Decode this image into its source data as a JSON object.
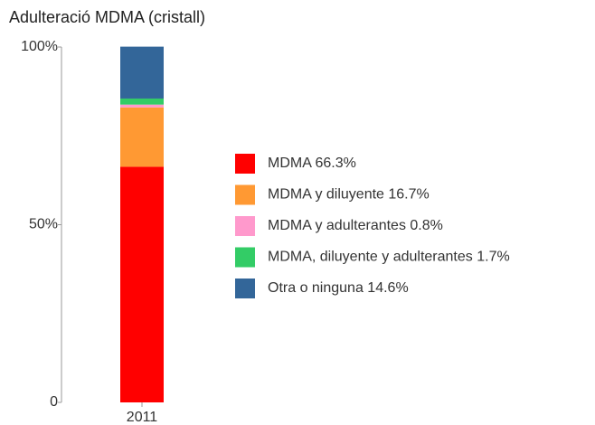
{
  "chart_data": {
    "type": "stacked_bar",
    "title": "Adulteració MDMA (cristall)",
    "categories": [
      "2011"
    ],
    "series": [
      {
        "name": "MDMA 66.3%",
        "color": "#ff0000",
        "values": [
          66.3
        ]
      },
      {
        "name": "MDMA y diluyente 16.7%",
        "color": "#ff9933",
        "values": [
          16.7
        ]
      },
      {
        "name": "MDMA y adulterantes 0.8%",
        "color": "#ff99cc",
        "values": [
          0.8
        ]
      },
      {
        "name": "MDMA, diluyente y adulterantes 1.7%",
        "color": "#33cc66",
        "values": [
          1.7
        ]
      },
      {
        "name": "Otra o ninguna 14.6%",
        "color": "#336699",
        "values": [
          14.6
        ]
      }
    ],
    "ylim": [
      0,
      100
    ],
    "yticks": [
      0,
      {
        "value": 50,
        "label": "50%"
      },
      {
        "value": 100,
        "label": "100%"
      }
    ],
    "legend": "right"
  }
}
